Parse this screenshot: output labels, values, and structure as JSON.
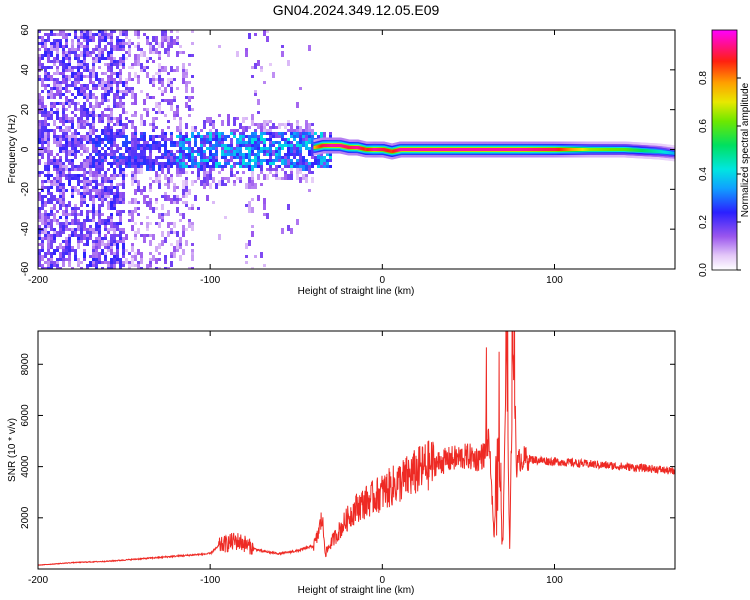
{
  "title": "GN04.2024.349.12.05.E09",
  "chart_data": [
    {
      "type": "heatmap",
      "xlabel": "Height of straight line (km)",
      "ylabel": "Frequency (Hz)",
      "xlim": [
        -200,
        170
      ],
      "ylim": [
        -60,
        60
      ],
      "xticks": [
        -200,
        -100,
        0,
        100
      ],
      "xtick_labels": [
        "-200",
        "-100",
        "0",
        "100"
      ],
      "yticks": [
        -60,
        -40,
        -20,
        0,
        20,
        40,
        60
      ],
      "ytick_labels": [
        "-60",
        "-40",
        "-20",
        "0",
        "20",
        "40",
        "60"
      ],
      "colorbar": {
        "label": "Normalized spectral amplitude",
        "range": [
          0.0,
          1.0
        ],
        "ticks": [
          0.0,
          0.2,
          0.4,
          0.6,
          0.8
        ],
        "tick_labels": [
          "0.0",
          "0.2",
          "0.4",
          "0.6",
          "0.8"
        ]
      },
      "ridge": {
        "x": [
          -40,
          -35,
          -30,
          -25,
          -20,
          -15,
          -10,
          -5,
          0,
          5,
          10,
          20,
          40,
          60,
          80,
          100,
          120,
          140,
          160,
          170
        ],
        "frequency": [
          1,
          2,
          2,
          2,
          1,
          1,
          0,
          0,
          0,
          -1,
          0,
          0,
          0,
          0,
          0,
          0,
          0,
          0,
          -1,
          -2
        ],
        "amplitude": [
          0.75,
          0.9,
          0.95,
          0.95,
          0.9,
          0.95,
          0.85,
          0.95,
          0.9,
          0.85,
          0.95,
          0.95,
          0.95,
          0.95,
          0.95,
          0.9,
          0.65,
          0.6,
          0.45,
          0.35
        ]
      }
    },
    {
      "type": "line",
      "xlabel": "Height of straight line (km)",
      "ylabel": "SNR (10 * v/v)",
      "xlim": [
        -200,
        170
      ],
      "ylim": [
        0,
        9300
      ],
      "xticks": [
        -200,
        -100,
        0,
        100
      ],
      "xtick_labels": [
        "-200",
        "-100",
        "0",
        "100"
      ],
      "yticks": [
        2000,
        4000,
        6000,
        8000
      ],
      "ytick_labels": [
        "2000",
        "4000",
        "6000",
        "8000"
      ],
      "color": "#ee2a24",
      "x": [
        -200,
        -180,
        -160,
        -140,
        -120,
        -110,
        -100,
        -95,
        -90,
        -85,
        -80,
        -75,
        -70,
        -60,
        -50,
        -45,
        -40,
        -38,
        -35,
        -33,
        -30,
        -25,
        -20,
        -15,
        -10,
        -5,
        0,
        5,
        10,
        15,
        20,
        25,
        30,
        35,
        40,
        45,
        50,
        55,
        60,
        62,
        65,
        67,
        70,
        72,
        74,
        76,
        78,
        80,
        85,
        90,
        100,
        110,
        120,
        130,
        140,
        150,
        160,
        170
      ],
      "y": [
        150,
        250,
        300,
        400,
        500,
        550,
        600,
        900,
        1000,
        1100,
        1000,
        800,
        700,
        600,
        700,
        800,
        900,
        1200,
        2000,
        600,
        1000,
        1500,
        2000,
        2400,
        2600,
        2800,
        3000,
        3200,
        3400,
        3600,
        3800,
        4000,
        4100,
        4200,
        4300,
        4350,
        4400,
        4300,
        4500,
        5000,
        1200,
        5200,
        900,
        8500,
        700,
        9000,
        4000,
        4300,
        4300,
        4250,
        4200,
        4150,
        4100,
        4050,
        4000,
        3950,
        3900,
        3800
      ]
    }
  ]
}
